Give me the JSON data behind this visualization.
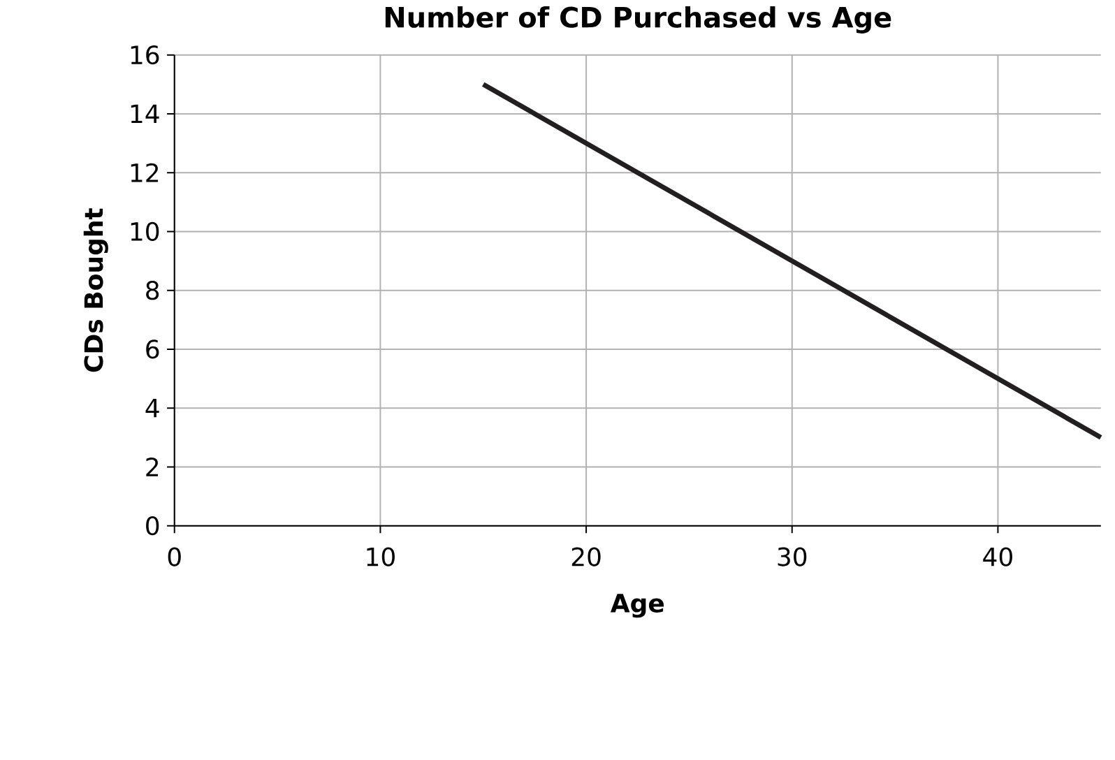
{
  "chart_data": {
    "type": "line",
    "title": "Number of CD Purchased vs Age",
    "xlabel": "Age",
    "ylabel": "CDs Bought",
    "x": [
      15,
      45
    ],
    "series": [
      {
        "color": "#231f20",
        "values": [
          15,
          3
        ]
      }
    ],
    "xlim": [
      0,
      45
    ],
    "ylim": [
      0,
      16
    ],
    "xticks": [
      0,
      10,
      20,
      30,
      40
    ],
    "yticks": [
      0,
      2,
      4,
      6,
      8,
      10,
      12,
      14,
      16
    ],
    "grid": true,
    "marker": "none",
    "line_style": "solid"
  }
}
